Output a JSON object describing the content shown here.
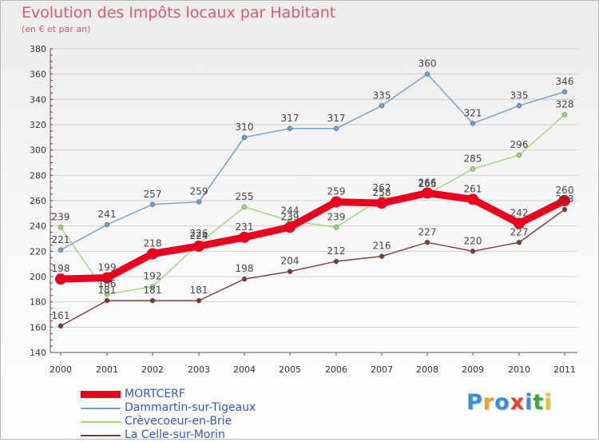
{
  "title": "Evolution des Impôts locaux par Habitant",
  "subtitle": "(en € et par an)",
  "logo": {
    "text": "Proxiti",
    "letter_colors": [
      "#3a8fd8",
      "#f0a020",
      "#3a8fd8",
      "#e8402a",
      "#3a8fd8",
      "#3aa83a",
      "#f0c020"
    ]
  },
  "chart_data": {
    "type": "line",
    "x": [
      "2000",
      "2001",
      "2002",
      "2003",
      "2004",
      "2005",
      "2006",
      "2007",
      "2008",
      "2009",
      "2010",
      "2011"
    ],
    "ylim": [
      140,
      380
    ],
    "yticks": [
      "140",
      "160",
      "180",
      "200",
      "220",
      "240",
      "260",
      "280",
      "300",
      "320",
      "340",
      "360",
      "380"
    ],
    "grid": "horizontal",
    "legend_position": "bottom-left",
    "series": [
      {
        "name": "MORTCERF",
        "color": "#e8001e",
        "values": [
          198,
          199,
          218,
          224,
          231,
          239,
          259,
          258,
          266,
          261,
          242,
          260
        ]
      },
      {
        "name": "Dammartin-sur-Tigeaux",
        "color": "#6f9fcc",
        "values": [
          221,
          241,
          257,
          259,
          310,
          317,
          317,
          335,
          360,
          321,
          335,
          346
        ]
      },
      {
        "name": "Crèvecoeur-en-Brie",
        "color": "#9fd67a",
        "values": [
          239,
          186,
          192,
          226,
          255,
          244,
          239,
          262,
          265,
          285,
          296,
          328
        ]
      },
      {
        "name": "La Celle-sur-Morin",
        "color": "#7a3b3b",
        "values": [
          161,
          181,
          181,
          181,
          198,
          204,
          212,
          216,
          227,
          220,
          227,
          253
        ]
      }
    ]
  }
}
